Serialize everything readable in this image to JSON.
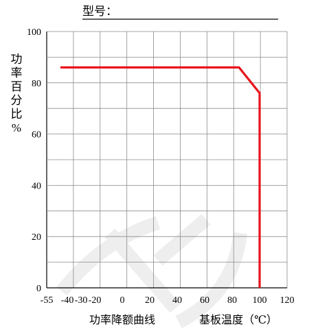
{
  "header": {
    "model_label": "型号："
  },
  "chart_data": {
    "type": "line",
    "title": "",
    "ylabel": "功率百分比%",
    "ylabel_chars": [
      "功",
      "率",
      "百",
      "分",
      "比",
      "%"
    ],
    "xlabel": "基板温度（℃）",
    "caption": "功率降额曲线",
    "xlim": [
      -55,
      120
    ],
    "ylim": [
      0,
      100
    ],
    "x_ticks": [
      -55,
      -40,
      -30,
      -20,
      0,
      20,
      40,
      60,
      80,
      100,
      120
    ],
    "y_ticks": [
      0,
      20,
      40,
      60,
      80,
      100
    ],
    "grid": true,
    "series": [
      {
        "color": "#e8121b",
        "points": [
          [
            -45,
            86
          ],
          [
            85,
            86
          ],
          [
            100,
            76
          ],
          [
            100,
            0
          ]
        ]
      }
    ]
  },
  "watermark": {
    "text": "ICS"
  }
}
